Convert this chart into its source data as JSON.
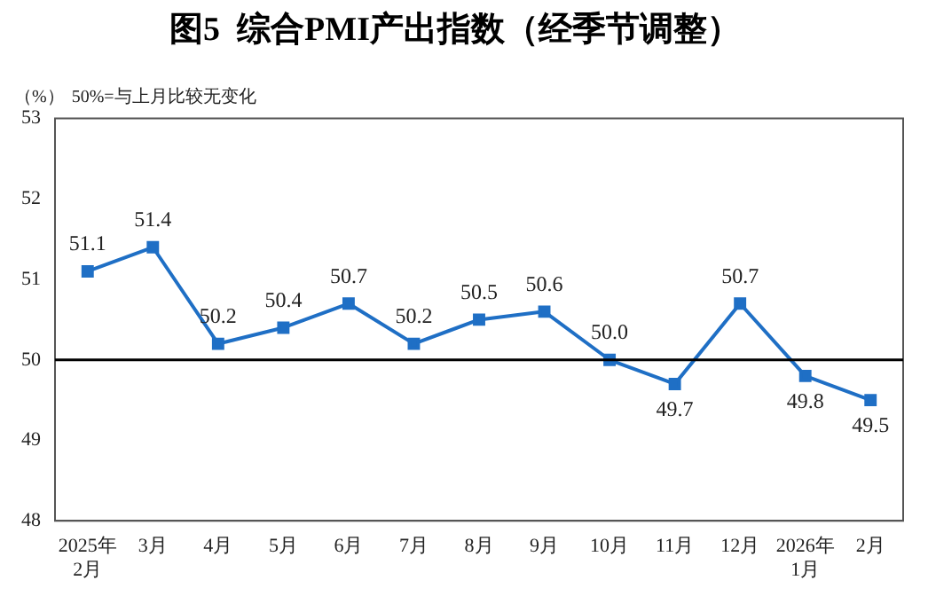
{
  "chart_data": {
    "type": "line",
    "title": "图5  综合PMI产出指数（经季节调整）",
    "ylabel": "（%）",
    "annotations": [
      "50%=与上月比较无变化"
    ],
    "categories": [
      "2025年\n2月",
      "3月",
      "4月",
      "5月",
      "6月",
      "7月",
      "8月",
      "9月",
      "10月",
      "11月",
      "12月",
      "2026年\n1月",
      "2月"
    ],
    "series": [
      {
        "color": "#1f6fc5",
        "values": [
          51.1,
          51.4,
          50.2,
          50.4,
          50.7,
          50.2,
          50.5,
          50.6,
          50.0,
          49.7,
          50.7,
          49.8,
          49.5
        ],
        "value_labels": [
          "51.1",
          "51.4",
          "50.2",
          "50.4",
          "50.7",
          "50.2",
          "50.5",
          "50.6",
          "50.0",
          "49.7",
          "50.7",
          "49.8",
          "49.5"
        ]
      }
    ],
    "ylim": [
      48,
      53
    ],
    "yticks": [
      48,
      49,
      50,
      51,
      52,
      53
    ],
    "grid": false,
    "legend": false,
    "marker": "square",
    "line_style": "solid",
    "ref_lines": [
      {
        "axis": "y",
        "value": 50,
        "color": "#000000"
      }
    ]
  }
}
